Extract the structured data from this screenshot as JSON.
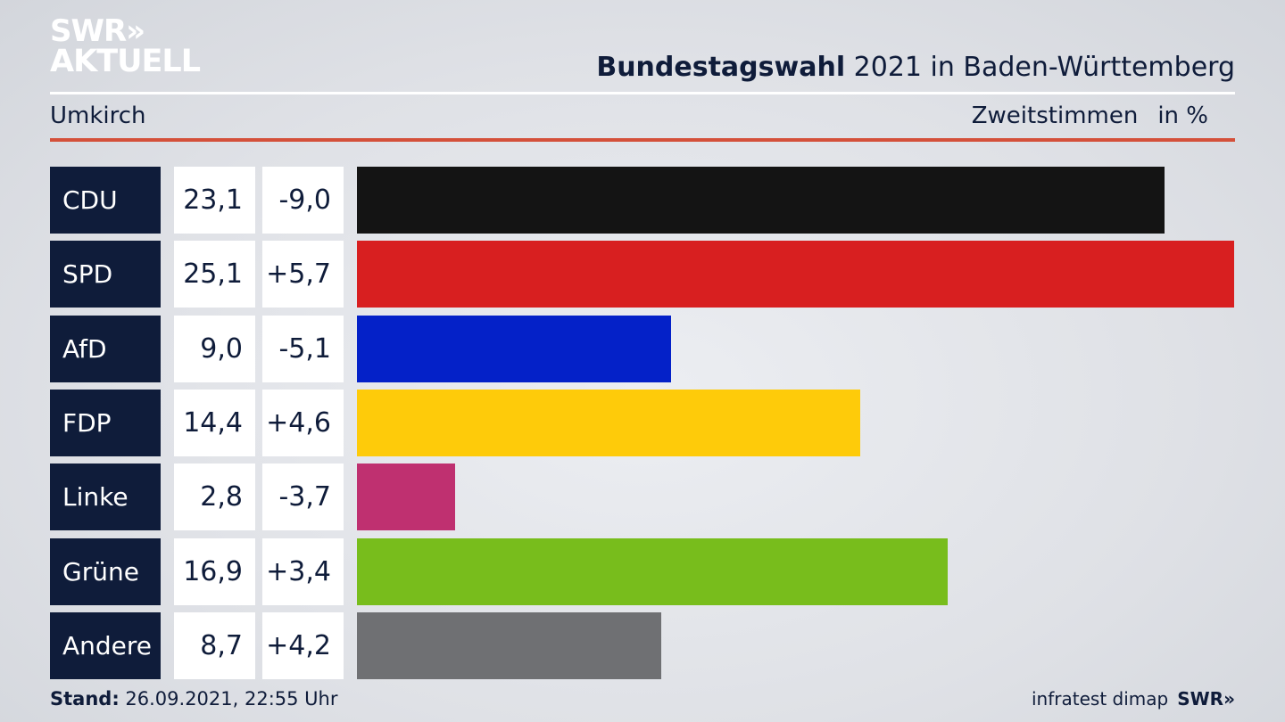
{
  "logo": {
    "line1": "SWR»",
    "line2": "AKTUELL"
  },
  "header": {
    "title_bold": "Bundestagswahl",
    "title_rest": " 2021 in Baden-Württemberg",
    "region": "Umkirch",
    "metric": "Zweitstimmen",
    "unit": "in %"
  },
  "footer": {
    "stand_label": "Stand:",
    "stand_value": " 26.09.2021, 22:55 Uhr",
    "source": "infratest dimap",
    "source_logo": "SWR»"
  },
  "chart_data": {
    "type": "bar",
    "orientation": "horizontal",
    "title": "Bundestagswahl 2021 in Baden-Württemberg",
    "categories": [
      "CDU",
      "SPD",
      "AfD",
      "FDP",
      "Linke",
      "Grüne",
      "Andere"
    ],
    "values": [
      23.1,
      25.1,
      9.0,
      14.4,
      2.8,
      16.9,
      8.7
    ],
    "value_labels": [
      "23,1",
      "25,1",
      "9,0",
      "14,4",
      "2,8",
      "16,9",
      "8,7"
    ],
    "changes": [
      -9.0,
      5.7,
      -5.1,
      4.6,
      -3.7,
      3.4,
      4.2
    ],
    "change_labels": [
      "-9,0",
      "+5,7",
      "-5,1",
      "+4,6",
      "-3,7",
      "+3,4",
      "+4,2"
    ],
    "colors": [
      "#141414",
      "#d81f20",
      "#0421c8",
      "#fecb0a",
      "#bf3070",
      "#78bd1c",
      "#6f7073"
    ],
    "xlim": [
      0,
      25.1
    ]
  }
}
